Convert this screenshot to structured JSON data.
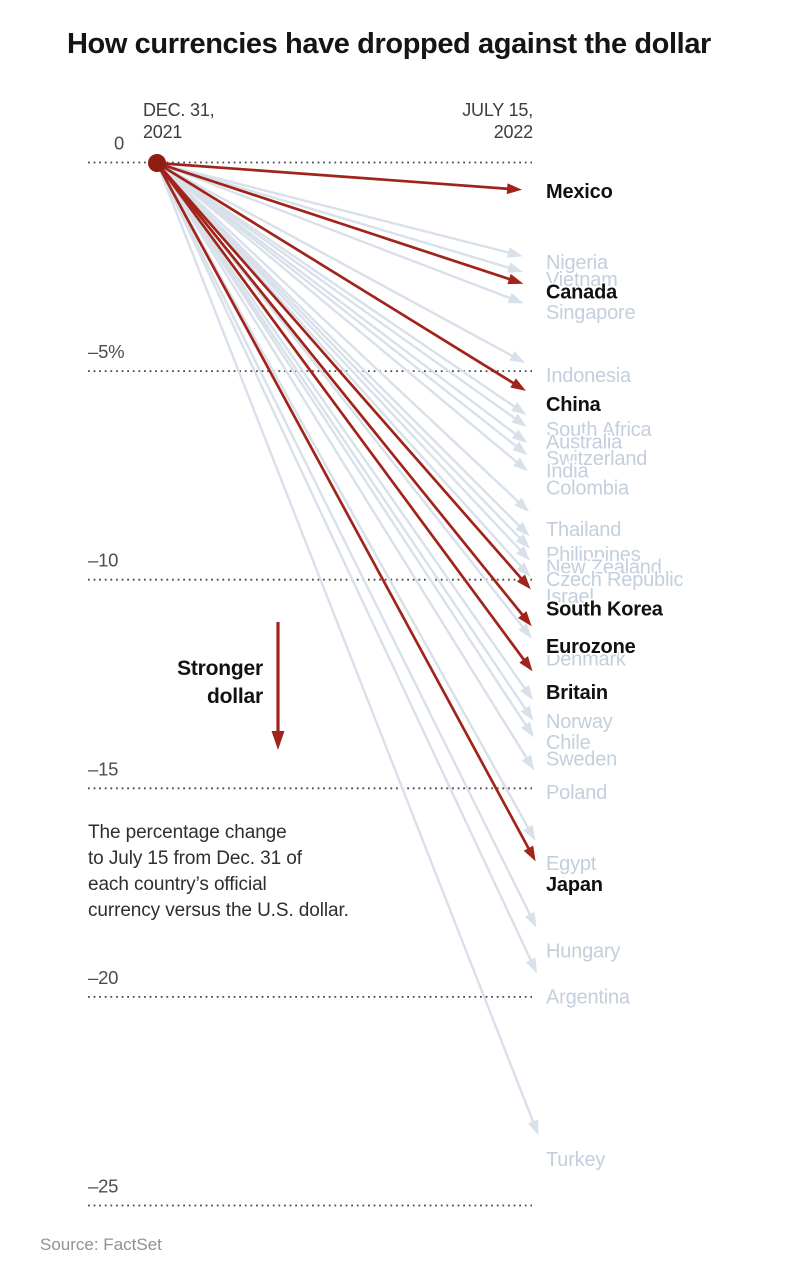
{
  "title": "How currencies have dropped against the dollar",
  "axis": {
    "start_date_line1": "DEC. 31,",
    "start_date_line2": "2021",
    "end_date_line1": "JULY 15,",
    "end_date_line2": "2022",
    "ticks": [
      {
        "label": "0",
        "value": 0
      },
      {
        "label": "–5%",
        "value": -5
      },
      {
        "label": "–10",
        "value": -10
      },
      {
        "label": "–15",
        "value": -15
      },
      {
        "label": "–20",
        "value": -20
      },
      {
        "label": "–25",
        "value": -25
      }
    ]
  },
  "annotation": {
    "line1": "Stronger",
    "line2": "dollar"
  },
  "caption": {
    "lines": [
      "The percentage change",
      "to July 15 from Dec. 31 of",
      "each country’s official",
      "currency versus the U.S. dollar."
    ]
  },
  "source": "Source: FactSet",
  "colors": {
    "highlight_red": "#a1241b",
    "origin_dot": "#8e1d12",
    "muted_line": "#d8e0ea",
    "muted_text": "#c3cfdd",
    "label_dark": "#111111",
    "grid_dots": "#4a4a4a",
    "tick_text": "#4d4d4d"
  },
  "chart_data": {
    "type": "slope-arrow",
    "title": "How currencies have dropped against the dollar",
    "x_start_label": "Dec. 31, 2021",
    "x_end_label": "July 15, 2022",
    "unit": "percent change of each currency vs. U.S. dollar",
    "ylim": [
      -25,
      0
    ],
    "origin_value": 0,
    "series": [
      {
        "country": "Mexico",
        "change_pct": -0.7,
        "highlighted": true
      },
      {
        "country": "Nigeria",
        "change_pct": -2.4,
        "highlighted": false
      },
      {
        "country": "Vietnam",
        "change_pct": -2.8,
        "highlighted": false
      },
      {
        "country": "Canada",
        "change_pct": -3.1,
        "highlighted": true
      },
      {
        "country": "Singapore",
        "change_pct": -3.6,
        "highlighted": false
      },
      {
        "country": "Indonesia",
        "change_pct": -5.1,
        "highlighted": false
      },
      {
        "country": "China",
        "change_pct": -5.8,
        "highlighted": true
      },
      {
        "country": "South Africa",
        "change_pct": -6.4,
        "highlighted": false
      },
      {
        "country": "Australia",
        "change_pct": -6.7,
        "highlighted": false
      },
      {
        "country": "Switzerland",
        "change_pct": -7.1,
        "highlighted": false
      },
      {
        "country": "India",
        "change_pct": -7.4,
        "highlighted": false
      },
      {
        "country": "Colombia",
        "change_pct": -7.8,
        "highlighted": false
      },
      {
        "country": "Thailand",
        "change_pct": -8.8,
        "highlighted": false
      },
      {
        "country": "Philippines",
        "change_pct": -9.4,
        "highlighted": false
      },
      {
        "country": "New Zealand",
        "change_pct": -9.7,
        "highlighted": false
      },
      {
        "country": "Czech Republic",
        "change_pct": -10.0,
        "highlighted": false
      },
      {
        "country": "Israel",
        "change_pct": -10.4,
        "highlighted": false
      },
      {
        "country": "South Korea",
        "change_pct": -10.7,
        "highlighted": true
      },
      {
        "country": "Eurozone",
        "change_pct": -11.6,
        "highlighted": true
      },
      {
        "country": "Denmark",
        "change_pct": -11.9,
        "highlighted": false
      },
      {
        "country": "Britain",
        "change_pct": -12.7,
        "highlighted": true
      },
      {
        "country": "Norway",
        "change_pct": -13.4,
        "highlighted": false
      },
      {
        "country": "Chile",
        "change_pct": -13.9,
        "highlighted": false
      },
      {
        "country": "Sweden",
        "change_pct": -14.3,
        "highlighted": false
      },
      {
        "country": "Poland",
        "change_pct": -15.1,
        "highlighted": false
      },
      {
        "country": "Egypt",
        "change_pct": -16.8,
        "highlighted": false
      },
      {
        "country": "Japan",
        "change_pct": -17.3,
        "highlighted": true
      },
      {
        "country": "Hungary",
        "change_pct": -18.9,
        "highlighted": false
      },
      {
        "country": "Argentina",
        "change_pct": -20.0,
        "highlighted": false
      },
      {
        "country": "Turkey",
        "change_pct": -23.9,
        "highlighted": false
      }
    ]
  }
}
